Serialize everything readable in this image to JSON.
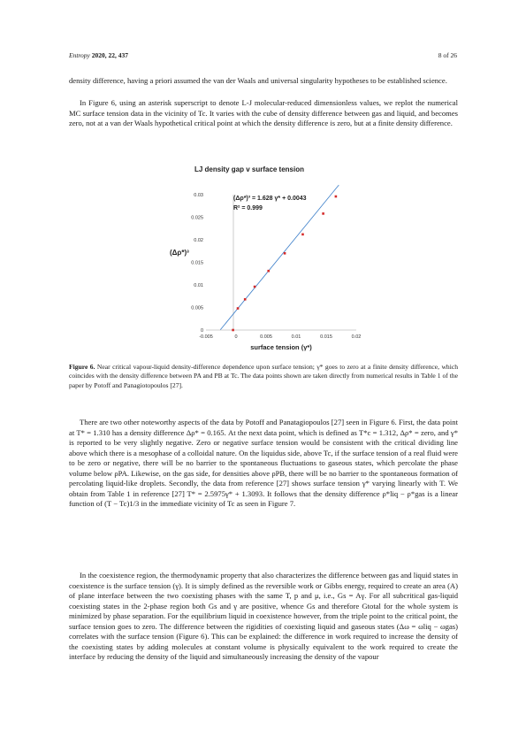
{
  "header": {
    "journal": "Entropy",
    "year_vol": "2020, 22, 437",
    "page": "8 of 26"
  },
  "paragraphs": {
    "p1": "density difference, having a priori assumed the van der Waals and universal singularity hypotheses to be established science.",
    "p2": "In Figure 6, using an asterisk superscript to denote L-J molecular-reduced dimensionless values, we replot the numerical MC surface tension data in the vicinity of Tc. It varies with the cube of density difference between gas and liquid, and becomes zero, not at a van der Waals hypothetical critical point at which the density difference is zero, but at a finite density difference.",
    "p3": "There are two other noteworthy aspects of the data by Potoff and Panatagiopoulos [27] seen in Figure 6. First, the data point at T* = 1.310 has a density difference Δρ* = 0.165. At the next data point, which is defined as T*c = 1.312, Δρ* = zero, and γ* is reported to be very slightly negative. Zero or negative surface tension would be consistent with the critical dividing line above which there is a mesophase of a colloidal nature. On the liquidus side, above Tc, if the surface tension of a real fluid were to be zero or negative, there will be no barrier to the spontaneous fluctuations to gaseous states, which percolate the phase volume below ρPA. Likewise, on the gas side, for densities above ρPB, there will be no barrier to the spontaneous formation of percolating liquid-like droplets. Secondly, the data from reference [27] shows surface tension γ* varying linearly with T. We obtain from Table 1 in reference [27] T* = 2.5975γ* + 1.3093. It follows that the density difference ρ*liq − ρ*gas is a linear function of (T − Tc)1/3 in the immediate vicinity of Tc as seen in Figure 7.",
    "p4": "In the coexistence region, the thermodynamic property that also characterizes the difference between gas and liquid states in coexistence is the surface tension (γ). It is simply defined as the reversible work or Gibbs energy, required to create an area (A) of plane interface between the two coexisting phases with the same T, p and μ, i.e., Gs = Aγ. For all subcritical gas-liquid coexisting states in the 2-phase region both Gs and γ are positive, whence Gs and therefore Gtotal for the whole system is minimized by phase separation. For the equilibrium liquid in coexistence however, from the triple point to the critical point, the surface tension goes to zero. The difference between the rigidities of coexisting liquid and gaseous states (Δω = ωliq − ωgas) correlates with the surface tension (Figure 6). This can be explained: the difference in work required to increase the density of the coexisting states by adding molecules at constant volume is physically equivalent to the work required to create the interface by reducing the density of the liquid and simultaneously increasing the density of the vapour"
  },
  "caption": {
    "label": "Figure 6.",
    "text": "Near critical vapour-liquid density-difference dependence upon surface tension; γ* goes to zero at a finite density difference, which coincides with the density difference between PA and PB at Tc. The data points shown are taken directly from numerical results in Table 1 of the paper by Potoff and Panagiotopoulos [27]."
  },
  "chart_data": {
    "type": "scatter",
    "title": "LJ density gap v surface tension",
    "xlabel": "surface tension (γ*)",
    "ylabel": "(Δρ*)³",
    "equation": "(Δρ*)³ = 1.628 γ* + 0.0043",
    "r_squared": "R² = 0.999",
    "xlim": [
      -0.005,
      0.02
    ],
    "ylim": [
      0,
      0.03
    ],
    "x_ticks": [
      "-0.005",
      "0",
      "0.005",
      "0.01",
      "0.015",
      "0.02"
    ],
    "y_ticks": [
      "0",
      "0.005",
      "0.01",
      "0.015",
      "0.02",
      "0.025",
      "0.03"
    ],
    "points": [
      {
        "x": -0.0005,
        "y": 0.0
      },
      {
        "x": 0.0003,
        "y": 0.0048
      },
      {
        "x": 0.0015,
        "y": 0.0068
      },
      {
        "x": 0.0031,
        "y": 0.0096
      },
      {
        "x": 0.0054,
        "y": 0.0131
      },
      {
        "x": 0.0081,
        "y": 0.017
      },
      {
        "x": 0.0111,
        "y": 0.0212
      },
      {
        "x": 0.0145,
        "y": 0.0258
      },
      {
        "x": 0.0166,
        "y": 0.0296
      }
    ],
    "fit": {
      "slope": 1.628,
      "intercept": 0.0043
    },
    "colors": {
      "points": "#d42a2a",
      "line": "#3c7fc9",
      "axis": "#bfbfbf"
    },
    "grid": false
  }
}
